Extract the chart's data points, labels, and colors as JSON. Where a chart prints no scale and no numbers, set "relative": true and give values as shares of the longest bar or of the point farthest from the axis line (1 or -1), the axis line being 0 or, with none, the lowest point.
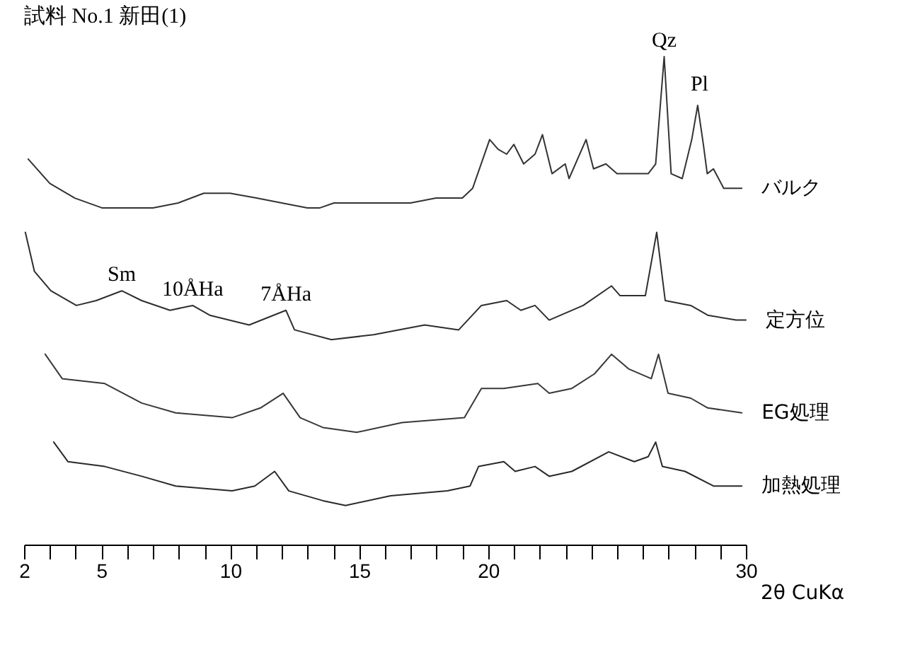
{
  "chart_data": {
    "type": "line",
    "relative": true,
    "title": "試料 No.1 新田(1)",
    "xlabel": "2θ CuKα",
    "xlim": [
      2,
      30
    ],
    "xticks": [
      2,
      {
        "value": 3,
        "label": null
      },
      {
        "value": 4,
        "label": null
      },
      5,
      {
        "value": 6,
        "label": null
      },
      {
        "value": 7,
        "label": null
      },
      {
        "value": 8,
        "label": null
      },
      {
        "value": 9,
        "label": null
      },
      10,
      {
        "value": 11,
        "label": null
      },
      {
        "value": 12,
        "label": null
      },
      {
        "value": 13,
        "label": null
      },
      {
        "value": 14,
        "label": null
      },
      15,
      {
        "value": 16,
        "label": null
      },
      {
        "value": 17,
        "label": null
      },
      {
        "value": 18,
        "label": null
      },
      {
        "value": 19,
        "label": null
      },
      20,
      {
        "value": 21,
        "label": null
      },
      {
        "value": 22,
        "label": null
      },
      {
        "value": 23,
        "label": null
      },
      {
        "value": 24,
        "label": null
      },
      {
        "value": 25,
        "label": null
      },
      {
        "value": 26,
        "label": null
      },
      {
        "value": 27,
        "label": null
      },
      {
        "value": 28,
        "label": null
      },
      {
        "value": 29,
        "label": null
      },
      30
    ],
    "grid": false,
    "legend": false,
    "marker": "none",
    "line_style": "solid",
    "series": [
      {
        "name": "バルク",
        "color": "#333333",
        "x": [
          2.16,
          3.0,
          3.97,
          5.02,
          6.01,
          7.0,
          7.98,
          8.97,
          9.99,
          11.02,
          12.0,
          12.99,
          13.48,
          14.02,
          15.01,
          16.0,
          16.99,
          17.98,
          19.0,
          19.4,
          20.06,
          20.39,
          20.72,
          21.0,
          21.38,
          21.82,
          22.11,
          22.48,
          22.99,
          23.14,
          23.8,
          24.09,
          24.57,
          25.0,
          25.67,
          26.21,
          26.5,
          26.83,
          27.1,
          27.53,
          27.9,
          28.13,
          28.35,
          28.5,
          28.74,
          29.14,
          29.62,
          29.84
        ],
        "values": [
          0.79,
          0.74,
          0.71,
          0.69,
          0.69,
          0.69,
          0.7,
          0.72,
          0.72,
          0.71,
          0.7,
          0.69,
          0.69,
          0.7,
          0.7,
          0.7,
          0.7,
          0.71,
          0.71,
          0.73,
          0.83,
          0.81,
          0.8,
          0.82,
          0.78,
          0.8,
          0.84,
          0.76,
          0.78,
          0.75,
          0.83,
          0.77,
          0.78,
          0.76,
          0.76,
          0.76,
          0.78,
          1,
          0.76,
          0.75,
          0.83,
          0.9,
          0.82,
          0.76,
          0.77,
          0.73,
          0.73,
          0.73
        ]
      },
      {
        "name": "定方位",
        "color": "#2e2e2e",
        "x": [
          2.05,
          2.4,
          3.04,
          4.03,
          4.8,
          5.79,
          6.56,
          7.66,
          8.54,
          9.2,
          10.73,
          12.16,
          12.49,
          13.92,
          15.56,
          17.54,
          18.86,
          19.74,
          20.72,
          21.27,
          21.82,
          22.37,
          23.69,
          24.79,
          25.12,
          26.1,
          26.54,
          26.87,
          27.86,
          28.52,
          29.62,
          30
        ],
        "values": [
          0.64,
          0.56,
          0.52,
          0.49,
          0.5,
          0.52,
          0.5,
          0.48,
          0.49,
          0.47,
          0.45,
          0.48,
          0.44,
          0.42,
          0.43,
          0.45,
          0.44,
          0.49,
          0.5,
          0.48,
          0.49,
          0.46,
          0.49,
          0.53,
          0.51,
          0.51,
          0.64,
          0.5,
          0.49,
          0.47,
          0.46,
          0.46
        ]
      },
      {
        "name": "EG処理",
        "color": "#383838",
        "x": [
          2.82,
          3.48,
          5.13,
          6.56,
          7.88,
          10.07,
          11.17,
          12.05,
          12.71,
          13.59,
          14.9,
          16.66,
          19.08,
          19.74,
          20.61,
          21.93,
          22.37,
          23.25,
          24.13,
          24.79,
          25.45,
          26.33,
          26.61,
          26.98,
          27.86,
          28.52,
          29.84
        ],
        "values": [
          0.39,
          0.34,
          0.33,
          0.29,
          0.27,
          0.26,
          0.28,
          0.31,
          0.26,
          0.24,
          0.23,
          0.25,
          0.26,
          0.32,
          0.32,
          0.33,
          0.31,
          0.32,
          0.35,
          0.39,
          0.36,
          0.34,
          0.39,
          0.31,
          0.3,
          0.28,
          0.27
        ]
      },
      {
        "name": "加熱処理",
        "color": "#292929",
        "x": [
          3.15,
          3.7,
          5.13,
          6.56,
          7.88,
          10.07,
          10.95,
          11.72,
          12.27,
          13.59,
          14.47,
          16.22,
          18.42,
          19.3,
          19.63,
          20.61,
          21.05,
          21.82,
          22.37,
          23.25,
          24.68,
          25.67,
          26.21,
          26.5,
          26.76,
          27.64,
          28.74,
          29.84
        ],
        "values": [
          0.21,
          0.17,
          0.16,
          0.14,
          0.12,
          0.11,
          0.12,
          0.15,
          0.11,
          0.09,
          0.08,
          0.1,
          0.11,
          0.12,
          0.16,
          0.17,
          0.15,
          0.16,
          0.14,
          0.15,
          0.19,
          0.17,
          0.18,
          0.21,
          0.16,
          0.15,
          0.12,
          0.12
        ]
      }
    ],
    "annotations": [
      {
        "text": "Qz",
        "x": 26.83,
        "y": 1
      },
      {
        "text": "Pl",
        "x": 28.2,
        "y": 0.91
      },
      {
        "text": "Sm",
        "x": 5.79,
        "y": 0.52
      },
      {
        "text": "10ÅHa",
        "x": 8.54,
        "y": 0.49
      },
      {
        "text": "7ÅHa",
        "x": 12.16,
        "y": 0.48
      }
    ]
  }
}
